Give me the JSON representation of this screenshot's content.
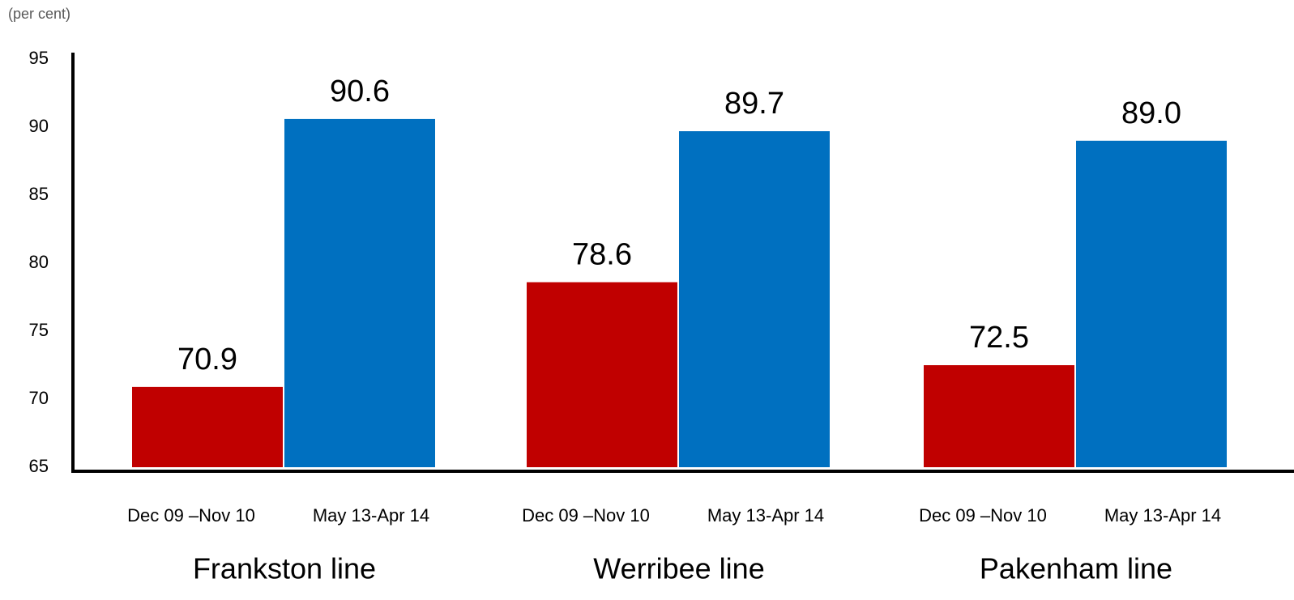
{
  "chart_data": {
    "type": "bar",
    "y_axis_label": "(per cent)",
    "categories": [
      "Frankston line",
      "Werribee line",
      "Pakenham line"
    ],
    "series": [
      {
        "name": "Dec 09 –Nov 10",
        "color": "#c00000",
        "values": [
          70.9,
          78.6,
          72.5
        ],
        "value_labels": [
          "70.9",
          "78.6",
          "72.5"
        ]
      },
      {
        "name": "May 13-Apr 14",
        "color": "#0070c0",
        "values": [
          90.6,
          89.7,
          89
        ],
        "value_labels": [
          "90.6",
          "89.7",
          "89.0"
        ]
      }
    ],
    "ylim": [
      65,
      95
    ],
    "yticks": [
      65,
      70,
      75,
      80,
      85,
      90,
      95
    ],
    "grid": false
  }
}
